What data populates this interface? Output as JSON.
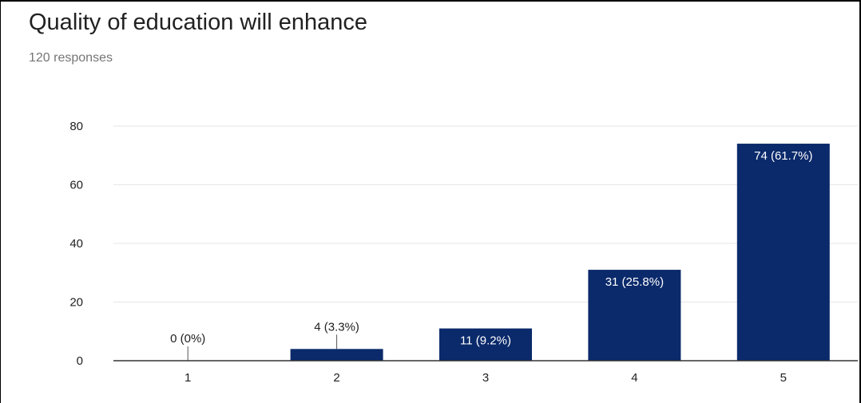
{
  "header": {
    "title": "Quality of education will enhance",
    "subtitle": "120 responses"
  },
  "chart_data": {
    "type": "bar",
    "categories": [
      "1",
      "2",
      "3",
      "4",
      "5"
    ],
    "values": [
      0,
      4,
      11,
      31,
      74
    ],
    "data_labels": [
      "0 (0%)",
      "4 (3.3%)",
      "11 (9.2%)",
      "31 (25.8%)",
      "74 (61.7%)"
    ],
    "ylim": [
      0,
      80
    ],
    "yticks": [
      0,
      20,
      40,
      60,
      80
    ],
    "grid": true,
    "colors": {
      "bar": "#0b2a6b",
      "grid": "#e6e6e6",
      "axis": "#333333",
      "label_inside": "#ffffff",
      "label_outside": "#212121"
    }
  }
}
